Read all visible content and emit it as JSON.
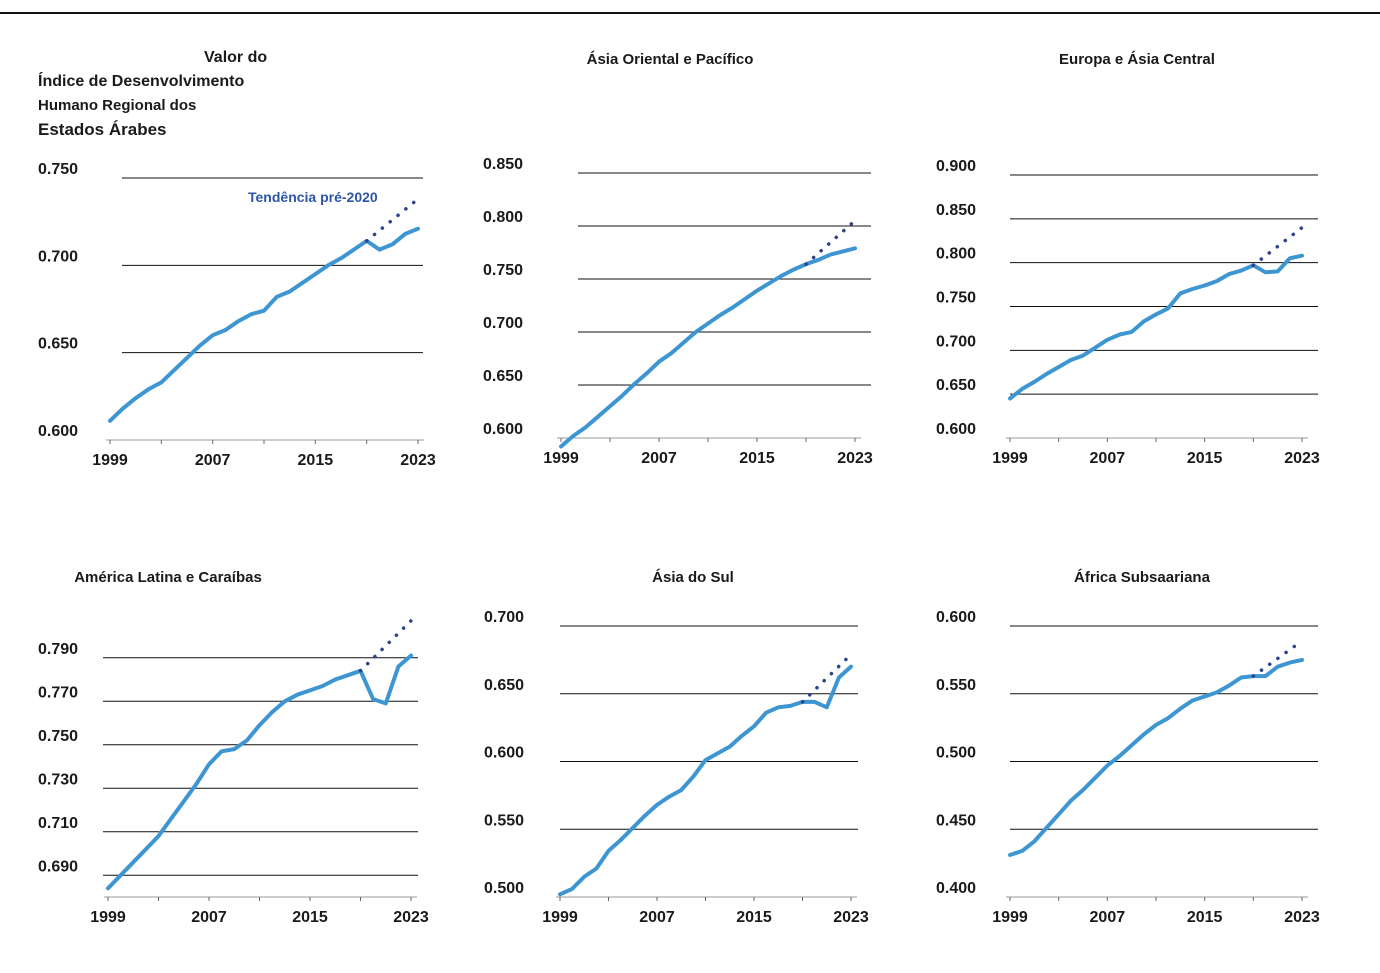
{
  "page_title": {
    "lines": [
      "Valor do",
      "Índice de Desenvolvimento",
      "Humano Regional dos",
      "Estados Árabes"
    ]
  },
  "colors": {
    "series": "#3d96d2",
    "trend": "#2e4288",
    "gridline": "#111111",
    "annotation": "#2e56a6"
  },
  "chart_data": [
    {
      "type": "line",
      "region": "arab-states",
      "title": "",
      "annotation": "Tendência pré-2020",
      "x_ticks": [
        "1999",
        "2007",
        "2015",
        "2023"
      ],
      "xlim": [
        1999,
        2023
      ],
      "y_ticks": [
        "0.600",
        "0.650",
        "0.700",
        "0.750"
      ],
      "ylim": [
        0.6,
        0.75
      ],
      "grid": true,
      "series": [
        {
          "x": [
            1999,
            2000,
            2001,
            2002,
            2003,
            2004,
            2005,
            2006,
            2007,
            2008,
            2009,
            2010,
            2011,
            2012,
            2013,
            2014,
            2015,
            2016,
            2017,
            2018,
            2019,
            2020,
            2021,
            2022,
            2023
          ],
          "values": [
            0.611,
            0.618,
            0.624,
            0.629,
            0.633,
            0.64,
            0.647,
            0.654,
            0.66,
            0.663,
            0.668,
            0.672,
            0.674,
            0.682,
            0.685,
            0.69,
            0.695,
            0.7,
            0.704,
            0.709,
            0.714,
            0.709,
            0.712,
            0.718,
            0.721
          ]
        },
        {
          "style": "dotted",
          "x": [
            2019,
            2023
          ],
          "values": [
            0.714,
            0.738
          ]
        }
      ]
    },
    {
      "type": "line",
      "region": "east-asia-pacific",
      "title": "Ásia Oriental e Pacífico",
      "x_ticks": [
        "1999",
        "2007",
        "2015",
        "2023"
      ],
      "xlim": [
        1999,
        2023
      ],
      "y_ticks": [
        "0.600",
        "0.650",
        "0.700",
        "0.750",
        "0.800",
        "0.850"
      ],
      "ylim": [
        0.6,
        0.85
      ],
      "grid": true,
      "series": [
        {
          "x": [
            1999,
            2000,
            2001,
            2002,
            2003,
            2004,
            2005,
            2006,
            2007,
            2008,
            2009,
            2010,
            2011,
            2012,
            2013,
            2014,
            2015,
            2016,
            2017,
            2018,
            2019,
            2020,
            2021,
            2022,
            2023
          ],
          "values": [
            0.592,
            0.602,
            0.61,
            0.62,
            0.63,
            0.64,
            0.651,
            0.661,
            0.672,
            0.68,
            0.69,
            0.7,
            0.708,
            0.716,
            0.723,
            0.731,
            0.739,
            0.746,
            0.753,
            0.759,
            0.764,
            0.768,
            0.773,
            0.776,
            0.779
          ]
        },
        {
          "style": "dotted",
          "x": [
            2019,
            2023
          ],
          "values": [
            0.764,
            0.805
          ]
        }
      ]
    },
    {
      "type": "line",
      "region": "europe-central-asia",
      "title": "Europa e Ásia Central",
      "x_ticks": [
        "1999",
        "2007",
        "2015",
        "2023"
      ],
      "xlim": [
        1999,
        2023
      ],
      "y_ticks": [
        "0.600",
        "0.650",
        "0.700",
        "0.750",
        "0.800",
        "0.850",
        "0.900"
      ],
      "ylim": [
        0.6,
        0.9
      ],
      "grid": true,
      "series": [
        {
          "x": [
            1999,
            2000,
            2001,
            2002,
            2003,
            2004,
            2005,
            2006,
            2007,
            2008,
            2009,
            2010,
            2011,
            2012,
            2013,
            2014,
            2015,
            2016,
            2017,
            2018,
            2019,
            2020,
            2021,
            2022,
            2023
          ],
          "values": [
            0.645,
            0.656,
            0.664,
            0.673,
            0.681,
            0.689,
            0.694,
            0.703,
            0.712,
            0.718,
            0.721,
            0.733,
            0.741,
            0.748,
            0.765,
            0.77,
            0.774,
            0.779,
            0.787,
            0.791,
            0.797,
            0.789,
            0.79,
            0.805,
            0.808
          ]
        },
        {
          "style": "dotted",
          "x": [
            2019,
            2023
          ],
          "values": [
            0.797,
            0.84
          ]
        }
      ]
    },
    {
      "type": "line",
      "region": "latin-america-caribbean",
      "title": "América Latina e Caraíbas",
      "x_ticks": [
        "1999",
        "2007",
        "2015",
        "2023"
      ],
      "xlim": [
        1999,
        2023
      ],
      "y_ticks": [
        "0.690",
        "0.710",
        "0.730",
        "0.750",
        "0.770",
        "0.790"
      ],
      "ylim": [
        0.68,
        0.8
      ],
      "grid": true,
      "series": [
        {
          "x": [
            1999,
            2000,
            2001,
            2002,
            2003,
            2004,
            2005,
            2006,
            2007,
            2008,
            2009,
            2010,
            2011,
            2012,
            2013,
            2014,
            2015,
            2016,
            2017,
            2018,
            2019,
            2020,
            2021,
            2022,
            2023
          ],
          "values": [
            0.684,
            0.69,
            0.696,
            0.702,
            0.708,
            0.716,
            0.724,
            0.732,
            0.741,
            0.747,
            0.748,
            0.752,
            0.759,
            0.765,
            0.77,
            0.773,
            0.775,
            0.777,
            0.78,
            0.782,
            0.784,
            0.771,
            0.769,
            0.786,
            0.791
          ]
        },
        {
          "style": "dotted",
          "x": [
            2019,
            2023
          ],
          "values": [
            0.784,
            0.807
          ]
        }
      ]
    },
    {
      "type": "line",
      "region": "south-asia",
      "title": "Ásia do Sul",
      "x_ticks": [
        "1999",
        "2007",
        "2015",
        "2023"
      ],
      "xlim": [
        1999,
        2023
      ],
      "y_ticks": [
        "0.500",
        "0.550",
        "0.600",
        "0.650",
        "0.700"
      ],
      "ylim": [
        0.5,
        0.7
      ],
      "grid": true,
      "series": [
        {
          "x": [
            1999,
            2000,
            2001,
            2002,
            2003,
            2004,
            2005,
            2006,
            2007,
            2008,
            2009,
            2010,
            2011,
            2012,
            2013,
            2014,
            2015,
            2016,
            2017,
            2018,
            2019,
            2020,
            2021,
            2022,
            2023
          ],
          "values": [
            0.502,
            0.506,
            0.515,
            0.521,
            0.534,
            0.542,
            0.551,
            0.56,
            0.568,
            0.574,
            0.579,
            0.589,
            0.601,
            0.606,
            0.611,
            0.619,
            0.626,
            0.636,
            0.64,
            0.641,
            0.644,
            0.644,
            0.64,
            0.662,
            0.67
          ]
        },
        {
          "style": "dotted",
          "x": [
            2019,
            2023
          ],
          "values": [
            0.644,
            0.679
          ]
        }
      ]
    },
    {
      "type": "line",
      "region": "sub-saharan-africa",
      "title": "África Subsaariana",
      "x_ticks": [
        "1999",
        "2007",
        "2015",
        "2023"
      ],
      "xlim": [
        1999,
        2023
      ],
      "y_ticks": [
        "0.400",
        "0.450",
        "0.500",
        "0.550",
        "0.600"
      ],
      "ylim": [
        0.4,
        0.6
      ],
      "grid": true,
      "series": [
        {
          "x": [
            1999,
            2000,
            2001,
            2002,
            2003,
            2004,
            2005,
            2006,
            2007,
            2008,
            2009,
            2010,
            2011,
            2012,
            2013,
            2014,
            2015,
            2016,
            2017,
            2018,
            2019,
            2020,
            2021,
            2022,
            2023
          ],
          "values": [
            0.431,
            0.434,
            0.441,
            0.451,
            0.461,
            0.471,
            0.479,
            0.488,
            0.497,
            0.504,
            0.512,
            0.52,
            0.527,
            0.532,
            0.539,
            0.545,
            0.548,
            0.551,
            0.556,
            0.562,
            0.563,
            0.563,
            0.57,
            0.573,
            0.575
          ]
        },
        {
          "style": "dotted",
          "x": [
            2019,
            2023
          ],
          "values": [
            0.563,
            0.589
          ]
        }
      ]
    }
  ]
}
